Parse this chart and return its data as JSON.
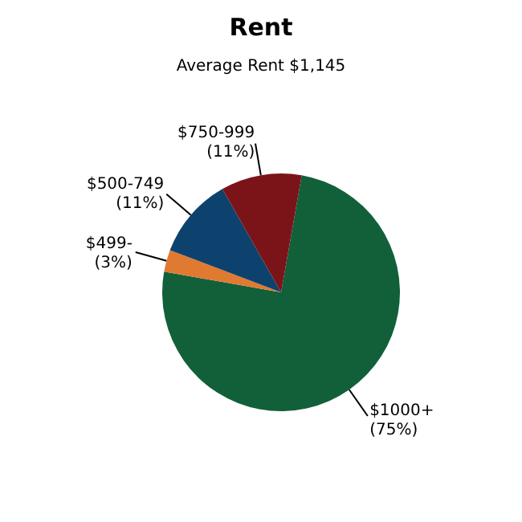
{
  "chart_data": {
    "type": "pie",
    "title": "Rent",
    "subtitle": "Average Rent  $1,145",
    "categories": [
      "$1000+",
      "$499-",
      "$500-749",
      "$750-999"
    ],
    "values": [
      75,
      3,
      11,
      11
    ],
    "value_labels": [
      "(75%)",
      "(3%)",
      "(11%)",
      "(11%)"
    ],
    "colors": [
      "#11603a",
      "#e07a30",
      "#0e426e",
      "#7b1419"
    ],
    "legend": false
  }
}
